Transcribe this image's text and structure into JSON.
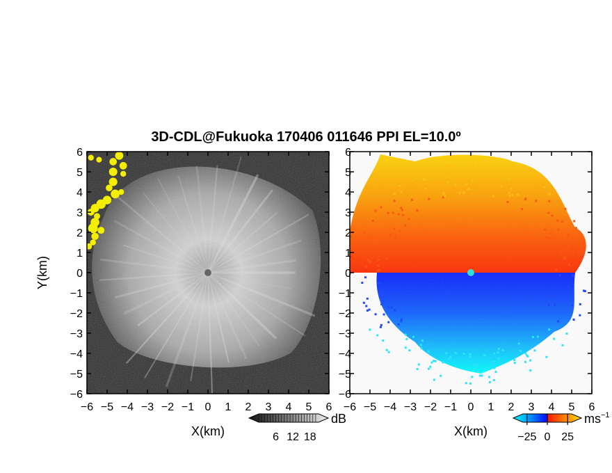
{
  "figure": {
    "title": "3D-CDL@Fukuoka 170406 011646 PPI EL=10.0º"
  },
  "chart_data": [
    {
      "type": "heatmap",
      "panel": "left",
      "title": "",
      "xlabel": "X(km)",
      "ylabel": "Y(km)",
      "xlim": [
        -6,
        6
      ],
      "ylim": [
        -6,
        6
      ],
      "xticks": [
        "−6",
        "−5",
        "−4",
        "−3",
        "−2",
        "−1",
        "0",
        "1",
        "2",
        "3",
        "4",
        "5",
        "6"
      ],
      "yticks": [
        "6",
        "5",
        "4",
        "3",
        "2",
        "1",
        "0",
        "−1",
        "−2",
        "−3",
        "−4",
        "−5",
        "−6"
      ],
      "colorbar": {
        "unit": "dB",
        "ticks": [
          "6",
          "12",
          "18"
        ],
        "tick_values": [
          6,
          12,
          18
        ],
        "range": [
          0,
          21
        ],
        "colormap": "grayscale"
      },
      "colors": {
        "background": "#2b2b2b",
        "echo_center": "#cfcfcf",
        "high_echo": "#f4ee00"
      },
      "features": [
        "radar site at (0, 0)",
        "strong echoes near (−5.5, 1.3) to (−4, 6)"
      ]
    },
    {
      "type": "heatmap",
      "panel": "right",
      "title": "",
      "xlabel": "X(km)",
      "xlim": [
        -6,
        6
      ],
      "ylim": [
        -6,
        6
      ],
      "xticks": [
        "−6",
        "−5",
        "−4",
        "−3",
        "−2",
        "−1",
        "0",
        "1",
        "2",
        "3",
        "4",
        "5",
        "6"
      ],
      "yticks": [
        "6",
        "5",
        "4",
        "3",
        "2",
        "1",
        "0",
        "−1",
        "−2",
        "−3",
        "−4",
        "−5",
        "−6"
      ],
      "colorbar": {
        "unit": "ms",
        "unit_superscript": "−1",
        "ticks": [
          "−25",
          "0",
          "25"
        ],
        "tick_values": [
          -25,
          0,
          25
        ],
        "range": [
          -30,
          30
        ],
        "colormap": "doppler"
      },
      "colors": {
        "north_half": "#ff5a00",
        "north_far": "#ffd000",
        "south_half": "#0a3cff",
        "south_far": "#00ffff",
        "site": "#30e0d8"
      }
    }
  ]
}
